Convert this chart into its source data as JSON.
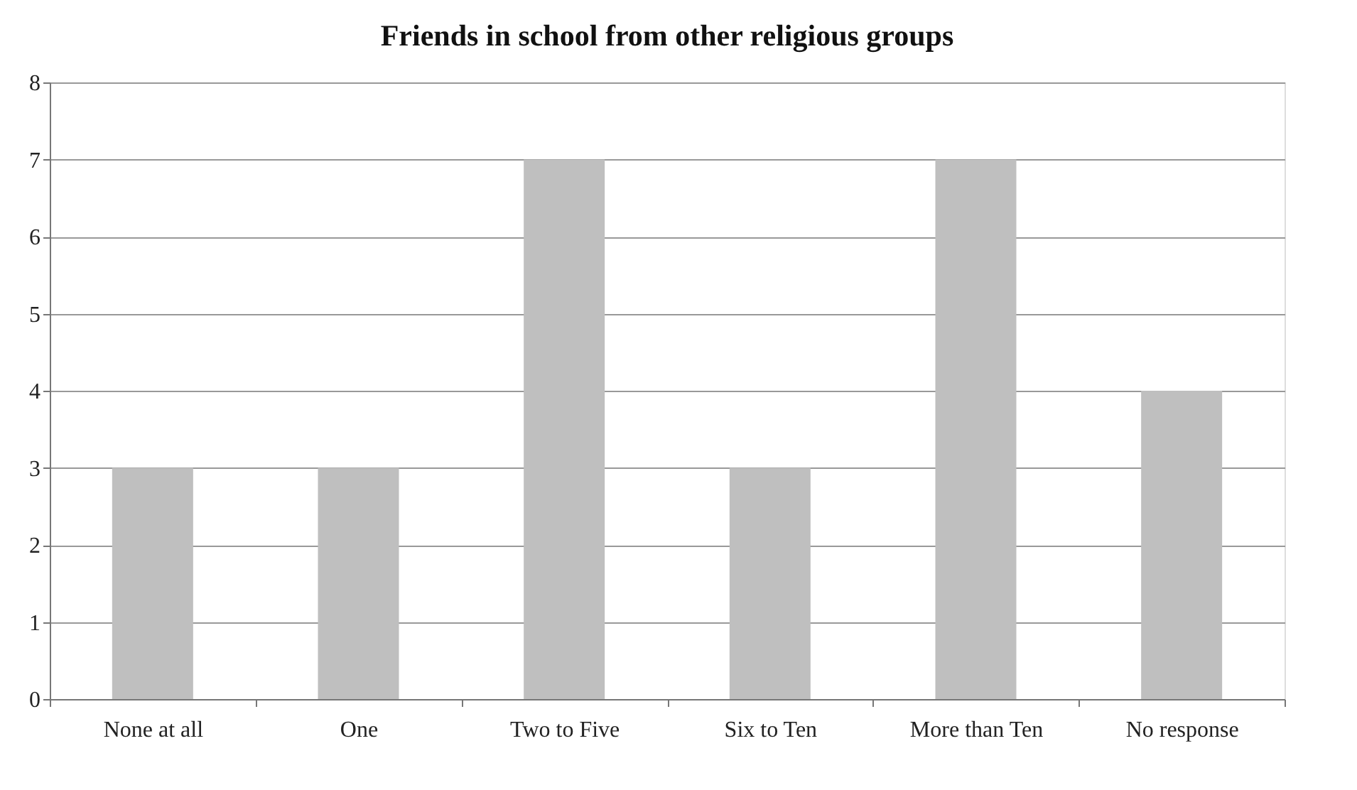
{
  "chart_data": {
    "type": "bar",
    "title": "Friends in school from other religious groups",
    "categories": [
      "None at all",
      "One",
      "Two to Five",
      "Six to Ten",
      "More than Ten",
      "No response"
    ],
    "values": [
      3,
      3,
      7,
      3,
      7,
      4
    ],
    "color": "#bfbfbf",
    "ylim": [
      0,
      8
    ],
    "yticks": [
      0,
      1,
      2,
      3,
      4,
      5,
      6,
      7,
      8
    ],
    "grid": "y"
  }
}
